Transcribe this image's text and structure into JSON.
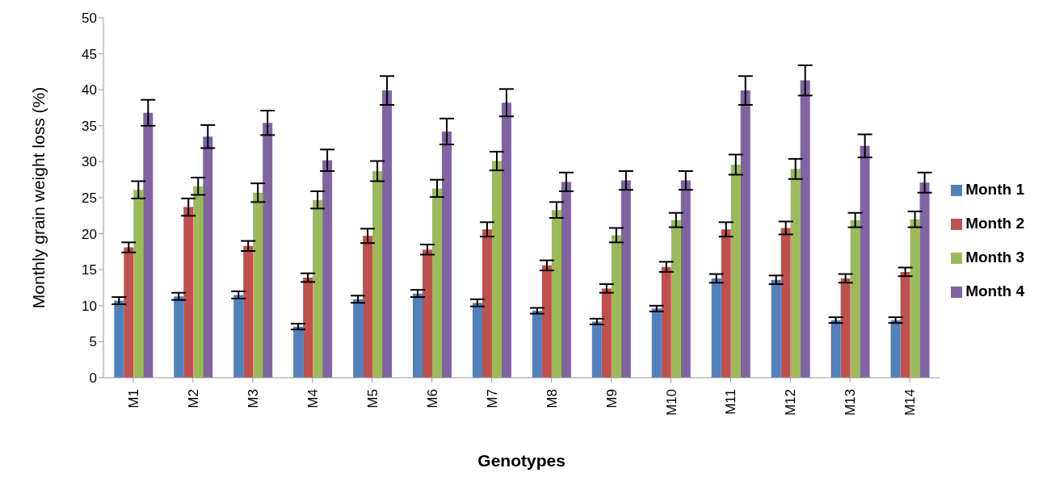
{
  "chart_data": {
    "type": "bar",
    "xlabel": "Genotypes",
    "ylabel": "Monthly grain weight loss (%)",
    "categories": [
      "M1",
      "M2",
      "M3",
      "M4",
      "M5",
      "M6",
      "M7",
      "M8",
      "M9",
      "M10",
      "M11",
      "M12",
      "M13",
      "M14"
    ],
    "series": [
      {
        "name": "Month 1",
        "color": "#4f81bd",
        "values": [
          10.7,
          11.3,
          11.5,
          7.1,
          10.9,
          11.7,
          10.4,
          9.3,
          7.8,
          9.6,
          13.8,
          13.6,
          8.0,
          8.0
        ],
        "errors": [
          0.5,
          0.5,
          0.5,
          0.4,
          0.5,
          0.5,
          0.5,
          0.4,
          0.4,
          0.4,
          0.6,
          0.6,
          0.4,
          0.4
        ]
      },
      {
        "name": "Month 2",
        "color": "#c0504d",
        "values": [
          18.1,
          23.7,
          18.3,
          13.9,
          19.7,
          17.8,
          20.6,
          15.6,
          12.4,
          15.4,
          20.6,
          20.8,
          13.8,
          14.7
        ],
        "errors": [
          0.7,
          1.2,
          0.7,
          0.6,
          1.0,
          0.7,
          1.0,
          0.7,
          0.6,
          0.7,
          1.0,
          0.9,
          0.6,
          0.6
        ]
      },
      {
        "name": "Month 3",
        "color": "#9bbb59",
        "values": [
          26.1,
          26.6,
          25.7,
          24.7,
          28.7,
          26.3,
          30.1,
          23.3,
          19.8,
          21.9,
          29.6,
          29.0,
          21.9,
          22.0
        ],
        "errors": [
          1.2,
          1.2,
          1.3,
          1.2,
          1.4,
          1.2,
          1.3,
          1.1,
          1.0,
          1.0,
          1.4,
          1.4,
          1.0,
          1.1
        ]
      },
      {
        "name": "Month 4",
        "color": "#8064a2",
        "values": [
          36.8,
          33.5,
          35.4,
          30.2,
          39.9,
          34.2,
          38.2,
          27.2,
          27.4,
          27.4,
          39.9,
          41.3,
          32.2,
          27.1
        ],
        "errors": [
          1.8,
          1.6,
          1.7,
          1.5,
          2.0,
          1.8,
          1.9,
          1.3,
          1.3,
          1.3,
          2.0,
          2.1,
          1.6,
          1.4
        ]
      }
    ],
    "ylim": [
      0,
      50
    ],
    "yticks": [
      0,
      5,
      10,
      15,
      20,
      25,
      30,
      35,
      40,
      45,
      50
    ],
    "grid": false,
    "legend": "right"
  }
}
